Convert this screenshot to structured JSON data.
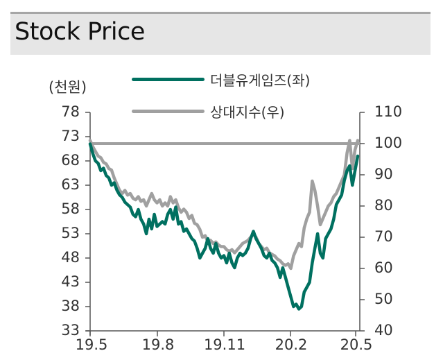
{
  "header": {
    "title": "Stock Price"
  },
  "left_axis": {
    "unit_label": "(천원)"
  },
  "legend": [
    {
      "label": "더블유게임즈(좌)",
      "color": "#007060"
    },
    {
      "label": "상대지수(우)",
      "color": "#a0a0a0"
    }
  ],
  "chart_data": {
    "type": "line",
    "title": "Stock Price",
    "xlabel": "",
    "ylabel_left": "(천원)",
    "ylabel_right": "",
    "x_ticks": [
      "19.5",
      "19.8",
      "19.11",
      "20.2",
      "20.5"
    ],
    "y_left_ticks": [
      78,
      73,
      68,
      63,
      58,
      53,
      48,
      43,
      38,
      33
    ],
    "y_right_ticks": [
      110,
      100,
      90,
      80,
      70,
      60,
      50,
      40
    ],
    "ylim_left": [
      33,
      78
    ],
    "ylim_right": [
      40,
      110
    ],
    "grid": false,
    "legend_position": "top",
    "reference_line": {
      "axis": "right",
      "value": 100,
      "color": "#a0a0a0"
    },
    "x_range_index": [
      0,
      100
    ],
    "series": [
      {
        "name": "더블유게임즈(좌)",
        "axis": "left",
        "color": "#007060",
        "points": [
          [
            0,
            71.5
          ],
          [
            1,
            69.5
          ],
          [
            2,
            68
          ],
          [
            3,
            67.5
          ],
          [
            4,
            66
          ],
          [
            5,
            66.5
          ],
          [
            6,
            65
          ],
          [
            7,
            64.5
          ],
          [
            8,
            63
          ],
          [
            9,
            63.5
          ],
          [
            10,
            62
          ],
          [
            11,
            61
          ],
          [
            12,
            60.5
          ],
          [
            13,
            59.5
          ],
          [
            14,
            59
          ],
          [
            15,
            58.5
          ],
          [
            16,
            57
          ],
          [
            17,
            56.5
          ],
          [
            18,
            58
          ],
          [
            19,
            56
          ],
          [
            20,
            55
          ],
          [
            21,
            53
          ],
          [
            22,
            56
          ],
          [
            23,
            54
          ],
          [
            24,
            57
          ],
          [
            25,
            54.5
          ],
          [
            26,
            55
          ],
          [
            27,
            55.5
          ],
          [
            28,
            55
          ],
          [
            29,
            57
          ],
          [
            30,
            58
          ],
          [
            31,
            56
          ],
          [
            32,
            58.5
          ],
          [
            33,
            55
          ],
          [
            34,
            55.5
          ],
          [
            35,
            53.5
          ],
          [
            36,
            54
          ],
          [
            37,
            53
          ],
          [
            38,
            52
          ],
          [
            39,
            51.5
          ],
          [
            40,
            50
          ],
          [
            41,
            48
          ],
          [
            42,
            49
          ],
          [
            43,
            50
          ],
          [
            44,
            52
          ],
          [
            45,
            50
          ],
          [
            46,
            49
          ],
          [
            47,
            51
          ],
          [
            48,
            49
          ],
          [
            49,
            48
          ],
          [
            50,
            48.5
          ],
          [
            51,
            47
          ],
          [
            52,
            49
          ],
          [
            53,
            47
          ],
          [
            54,
            46
          ],
          [
            55,
            48
          ],
          [
            56,
            49
          ],
          [
            57,
            48.5
          ],
          [
            58,
            49
          ],
          [
            59,
            50
          ],
          [
            60,
            52
          ],
          [
            61,
            53.5
          ],
          [
            62,
            52
          ],
          [
            63,
            51
          ],
          [
            64,
            50
          ],
          [
            65,
            48.5
          ],
          [
            66,
            48
          ],
          [
            67,
            49
          ],
          [
            68,
            47.5
          ],
          [
            69,
            47
          ],
          [
            70,
            46
          ],
          [
            71,
            44
          ],
          [
            72,
            46
          ],
          [
            73,
            44
          ],
          [
            74,
            42
          ],
          [
            75,
            40
          ],
          [
            76,
            38
          ],
          [
            77,
            38.5
          ],
          [
            78,
            37.5
          ],
          [
            79,
            38
          ],
          [
            80,
            41
          ],
          [
            81,
            42
          ],
          [
            82,
            43
          ],
          [
            83,
            47
          ],
          [
            84,
            50
          ],
          [
            85,
            53
          ],
          [
            86,
            49
          ],
          [
            87,
            48
          ],
          [
            88,
            52
          ],
          [
            89,
            53
          ],
          [
            90,
            54
          ],
          [
            91,
            56
          ],
          [
            92,
            59
          ],
          [
            93,
            60
          ],
          [
            94,
            61
          ],
          [
            95,
            64
          ],
          [
            96,
            66
          ],
          [
            97,
            67
          ],
          [
            98,
            63
          ],
          [
            99,
            66
          ],
          [
            100,
            69
          ]
        ]
      },
      {
        "name": "상대지수(우)",
        "axis": "right",
        "color": "#a0a0a0",
        "points": [
          [
            0,
            101
          ],
          [
            1,
            99
          ],
          [
            2,
            97.5
          ],
          [
            3,
            96
          ],
          [
            4,
            95.5
          ],
          [
            5,
            94
          ],
          [
            6,
            93.5
          ],
          [
            7,
            92
          ],
          [
            8,
            91.5
          ],
          [
            9,
            89
          ],
          [
            10,
            87
          ],
          [
            11,
            85
          ],
          [
            12,
            84
          ],
          [
            13,
            85
          ],
          [
            14,
            83.5
          ],
          [
            15,
            84
          ],
          [
            16,
            82.5
          ],
          [
            17,
            82
          ],
          [
            18,
            83
          ],
          [
            19,
            81.5
          ],
          [
            20,
            82
          ],
          [
            21,
            80
          ],
          [
            22,
            82
          ],
          [
            23,
            84
          ],
          [
            24,
            82
          ],
          [
            25,
            81
          ],
          [
            26,
            82
          ],
          [
            27,
            80
          ],
          [
            28,
            81
          ],
          [
            29,
            80
          ],
          [
            30,
            83
          ],
          [
            31,
            81
          ],
          [
            32,
            82
          ],
          [
            33,
            79.5
          ],
          [
            34,
            78
          ],
          [
            35,
            79
          ],
          [
            36,
            78
          ],
          [
            37,
            76
          ],
          [
            38,
            77
          ],
          [
            39,
            74.5
          ],
          [
            40,
            74
          ],
          [
            41,
            72.5
          ],
          [
            42,
            70
          ],
          [
            43,
            70.5
          ],
          [
            44,
            68.5
          ],
          [
            45,
            69
          ],
          [
            46,
            68
          ],
          [
            47,
            68.5
          ],
          [
            48,
            67.5
          ],
          [
            49,
            67
          ],
          [
            50,
            67
          ],
          [
            51,
            66
          ],
          [
            52,
            65.5
          ],
          [
            53,
            66
          ],
          [
            54,
            65
          ],
          [
            55,
            66
          ],
          [
            56,
            67
          ],
          [
            57,
            68
          ],
          [
            58,
            68.5
          ],
          [
            59,
            69
          ],
          [
            60,
            70
          ],
          [
            61,
            71
          ],
          [
            62,
            70
          ],
          [
            63,
            68
          ],
          [
            64,
            67
          ],
          [
            65,
            66
          ],
          [
            66,
            66.5
          ],
          [
            67,
            65
          ],
          [
            68,
            64.5
          ],
          [
            69,
            64
          ],
          [
            70,
            63
          ],
          [
            71,
            62.5
          ],
          [
            72,
            61.5
          ],
          [
            73,
            61
          ],
          [
            74,
            61.5
          ],
          [
            75,
            60
          ],
          [
            76,
            64
          ],
          [
            77,
            66
          ],
          [
            78,
            68
          ],
          [
            79,
            67
          ],
          [
            80,
            73
          ],
          [
            81,
            76
          ],
          [
            82,
            78
          ],
          [
            83,
            88
          ],
          [
            84,
            85
          ],
          [
            85,
            80
          ],
          [
            86,
            74
          ],
          [
            87,
            76
          ],
          [
            88,
            78
          ],
          [
            89,
            80
          ],
          [
            90,
            81
          ],
          [
            91,
            83
          ],
          [
            92,
            84
          ],
          [
            93,
            86
          ],
          [
            94,
            88
          ],
          [
            95,
            90
          ],
          [
            96,
            97
          ],
          [
            97,
            101
          ],
          [
            98,
            92
          ],
          [
            99,
            98
          ],
          [
            100,
            101
          ]
        ]
      }
    ]
  }
}
